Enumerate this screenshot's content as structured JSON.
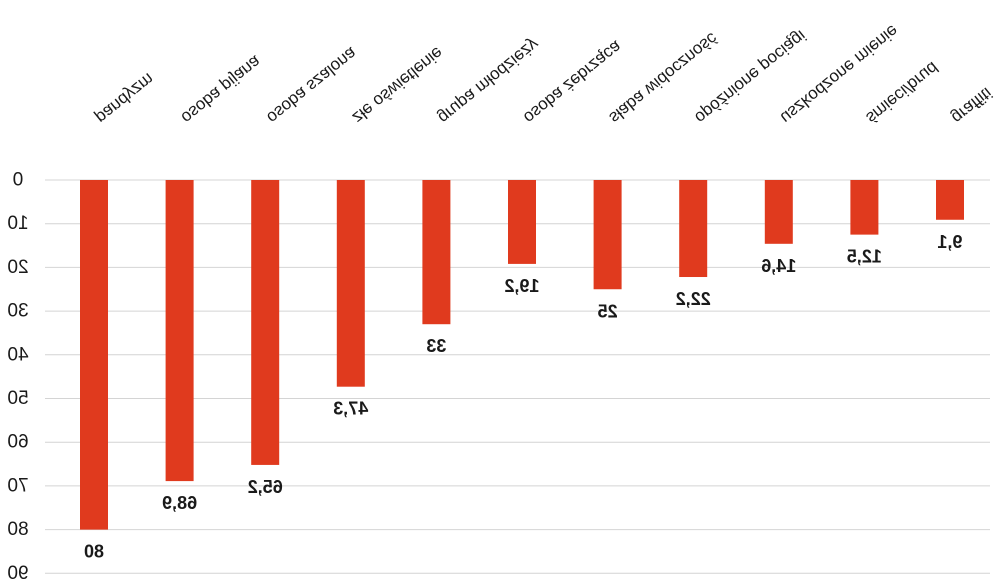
{
  "chart_data": {
    "type": "bar",
    "orientation": "vertical",
    "mirrored": true,
    "categories": [
      "pandyzm",
      "osoba pijana",
      "osoba szalona",
      "złe oświetlenie",
      "grupa młodzieży",
      "osoba żebrząca",
      "słaba widoczność",
      "opóźnione pociągi",
      "uszkodzone mienie",
      "śmieci/brud",
      "graffiti"
    ],
    "values": [
      80,
      68.9,
      65.2,
      47.3,
      33,
      19.2,
      25,
      22.2,
      14.6,
      12.5,
      9.1
    ],
    "value_labels": [
      "80",
      "68,9",
      "65,2",
      "47,3",
      "33",
      "19,2",
      "25",
      "22,2",
      "14,6",
      "12,5",
      "9,1"
    ],
    "y_ticks": [
      "0",
      "10",
      "20",
      "30",
      "40",
      "50",
      "60",
      "70",
      "80",
      "90"
    ],
    "ylim": [
      0,
      90
    ],
    "y_axis_direction": "downward",
    "bar_color": "#e03a1e",
    "grid_color": "#d4d4d4",
    "grid": true,
    "legend": "none"
  }
}
